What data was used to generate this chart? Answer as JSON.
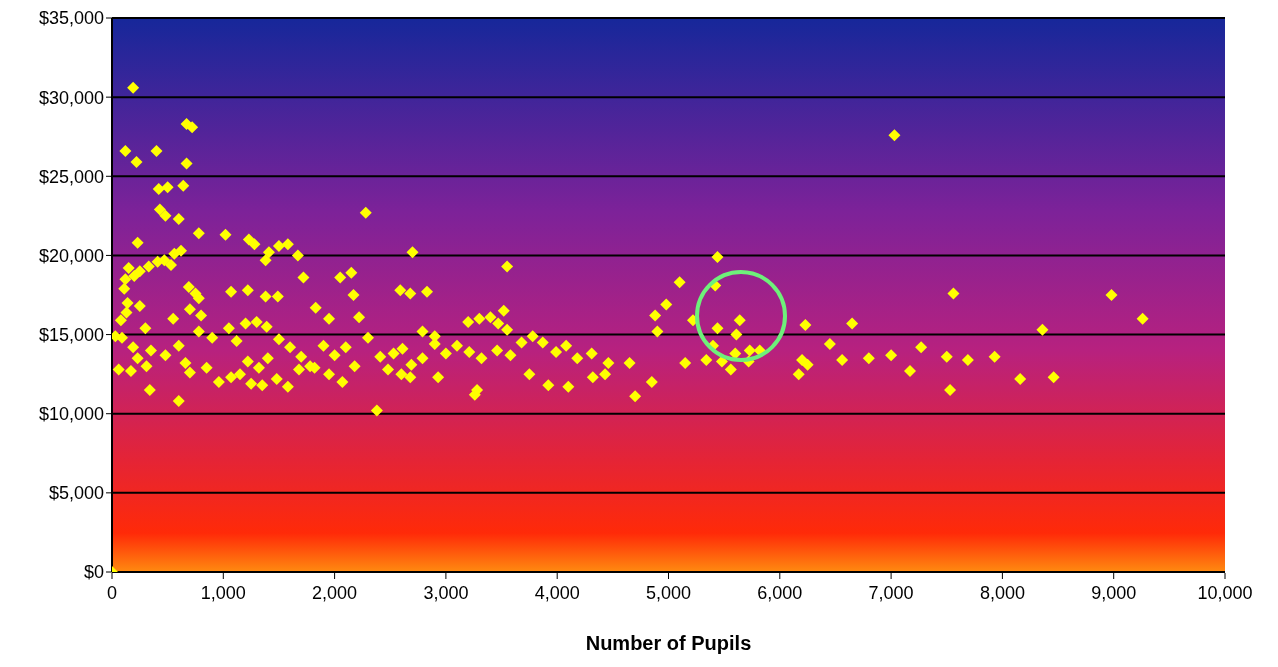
{
  "chart_data": {
    "type": "scatter",
    "xlabel": "Number of Pupils",
    "color": "#ffff00",
    "marker": "diamond",
    "grid": "y",
    "legend": false,
    "x": [
      190,
      120,
      220,
      400,
      670,
      720,
      670,
      420,
      500,
      640,
      430,
      480,
      600,
      780,
      1020,
      230,
      1230,
      1280,
      1500,
      1580,
      150,
      250,
      330,
      410,
      470,
      530,
      560,
      620,
      1380,
      1410,
      1670,
      2280,
      2150,
      2050,
      2700,
      3550,
      5440,
      120,
      200,
      110,
      690,
      750,
      780,
      1070,
      1220,
      1380,
      1490,
      1720,
      2590,
      2680,
      2830,
      2170,
      5100,
      5420,
      7560,
      8980,
      140,
      250,
      130,
      80,
      300,
      550,
      700,
      800,
      1200,
      1390,
      1300,
      1830,
      1950,
      2220,
      3200,
      3400,
      3300,
      3520,
      3470,
      4880,
      4980,
      5220,
      5640,
      6230,
      6650,
      9260,
      8360,
      5440,
      5610,
      4900,
      3550,
      2790,
      2900,
      30,
      90,
      190,
      230,
      350,
      480,
      600,
      660,
      780,
      900,
      1050,
      1120,
      1220,
      1320,
      1400,
      1500,
      1600,
      1700,
      1780,
      1900,
      2000,
      2100,
      2180,
      2300,
      2410,
      2530,
      2610,
      2690,
      2790,
      2900,
      3000,
      3100,
      3210,
      3320,
      3460,
      3580,
      3680,
      3780,
      3870,
      3990,
      4080,
      4180,
      4310,
      4460,
      4650,
      5150,
      5340,
      5480,
      5600,
      5730,
      5820,
      5400,
      6200,
      6250,
      6450,
      6560,
      6800,
      7000,
      7270,
      7500,
      7690,
      7930,
      5720,
      60,
      170,
      310,
      340,
      600,
      700,
      850,
      960,
      1070,
      1150,
      1250,
      1350,
      1480,
      1580,
      1680,
      1820,
      1950,
      2070,
      2380,
      2480,
      2600,
      2680,
      2930,
      3260,
      3280,
      3750,
      3920,
      4100,
      4320,
      4430,
      4700,
      4850,
      5560,
      6170,
      7170,
      7530,
      8160,
      8460,
      7030,
      0
    ],
    "values": [
      30600,
      26600,
      25900,
      26600,
      28300,
      28100,
      25800,
      24200,
      24300,
      24400,
      22900,
      22500,
      22300,
      21400,
      21300,
      20800,
      21000,
      20700,
      20600,
      20700,
      19200,
      19000,
      19300,
      19600,
      19700,
      19400,
      20100,
      20300,
      19700,
      20200,
      20000,
      22700,
      18900,
      18600,
      20200,
      19300,
      19900,
      18500,
      18700,
      17900,
      18000,
      17600,
      17300,
      17700,
      17800,
      17400,
      17400,
      18600,
      17800,
      17600,
      17700,
      17500,
      18300,
      18100,
      17600,
      17500,
      17000,
      16800,
      16400,
      15900,
      15400,
      16000,
      16600,
      16200,
      15700,
      15500,
      15800,
      16700,
      16000,
      16100,
      15800,
      16100,
      16000,
      16500,
      15700,
      16200,
      16900,
      15900,
      15900,
      15600,
      15700,
      16000,
      15300,
      15400,
      15000,
      15200,
      15300,
      15200,
      14900,
      14900,
      14800,
      14200,
      13500,
      14000,
      13700,
      14300,
      13200,
      15200,
      14800,
      15400,
      14600,
      13300,
      12900,
      13500,
      14700,
      14200,
      13600,
      13000,
      14300,
      13700,
      14200,
      13000,
      14800,
      13600,
      13800,
      14100,
      13100,
      13500,
      14400,
      13800,
      14300,
      13900,
      13500,
      14000,
      13700,
      14500,
      14900,
      14500,
      13900,
      14300,
      13500,
      13800,
      13200,
      13200,
      13200,
      13400,
      13300,
      13800,
      14000,
      14000,
      14300,
      13400,
      13100,
      14400,
      13400,
      13500,
      13700,
      14200,
      13600,
      13400,
      13600,
      13300,
      12800,
      12700,
      13000,
      11500,
      10800,
      12600,
      12900,
      12000,
      12300,
      12500,
      11900,
      11800,
      12200,
      11700,
      12800,
      12900,
      12500,
      12000,
      10200,
      12800,
      12500,
      12300,
      12300,
      11200,
      11500,
      12500,
      11800,
      11700,
      12300,
      12500,
      11100,
      12000,
      12800,
      12500,
      12700,
      11500,
      12200,
      12300,
      27600,
      0
    ],
    "xlim": [
      0,
      10000
    ],
    "xticks": [
      0,
      {
        "value": 1000,
        "label": "1,000"
      },
      {
        "value": 2000,
        "label": "2,000"
      },
      {
        "value": 3000,
        "label": "3,000"
      },
      {
        "value": 4000,
        "label": "4,000"
      },
      {
        "value": 5000,
        "label": "5,000"
      },
      {
        "value": 6000,
        "label": "6,000"
      },
      {
        "value": 7000,
        "label": "7,000"
      },
      {
        "value": 8000,
        "label": "8,000"
      },
      {
        "value": 9000,
        "label": "9,000"
      },
      {
        "value": 10000,
        "label": "10,000"
      }
    ],
    "ylim": [
      0,
      35000
    ],
    "yticks": [
      {
        "value": 0,
        "label": "$0"
      },
      {
        "value": 5000,
        "label": "$5,000"
      },
      {
        "value": 10000,
        "label": "$10,000"
      },
      {
        "value": 15000,
        "label": "$15,000"
      },
      {
        "value": 20000,
        "label": "$20,000"
      },
      {
        "value": 25000,
        "label": "$25,000"
      },
      {
        "value": 30000,
        "label": "$30,000"
      },
      {
        "value": 35000,
        "label": "$35,000"
      }
    ]
  }
}
